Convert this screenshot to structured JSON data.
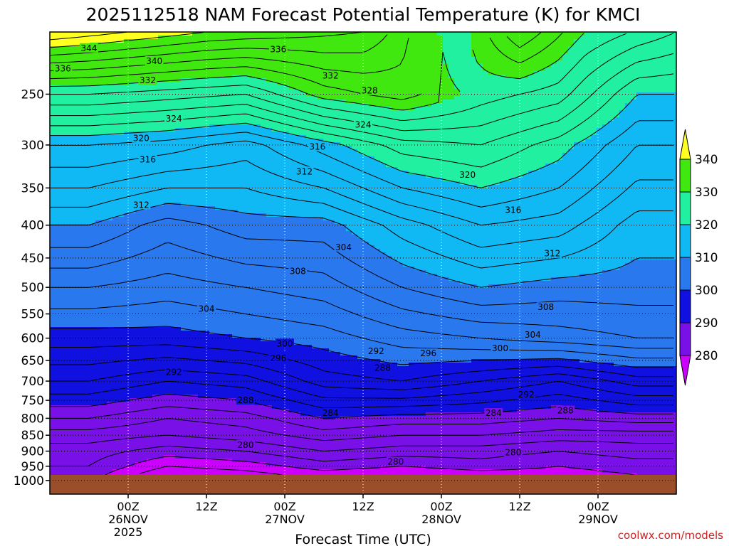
{
  "chart_data": {
    "type": "heatmap",
    "title": "2025112518 NAM Forecast Potential Temperature (K) for KMCI",
    "xlabel": "Forecast Time (UTC)",
    "ylabel": "",
    "y_scale": "log",
    "y_inverted": true,
    "y_ticks": [
      250,
      300,
      350,
      400,
      450,
      500,
      550,
      600,
      650,
      700,
      750,
      800,
      850,
      900,
      950,
      1000
    ],
    "y_range": [
      200,
      1050
    ],
    "x_hours_range": [
      -12,
      84
    ],
    "x_ticks": [
      {
        "hour": 0,
        "lines": [
          "00Z",
          "26NOV",
          "2025"
        ]
      },
      {
        "hour": 12,
        "lines": [
          "12Z"
        ]
      },
      {
        "hour": 24,
        "lines": [
          "00Z",
          "27NOV"
        ]
      },
      {
        "hour": 36,
        "lines": [
          "12Z"
        ]
      },
      {
        "hour": 48,
        "lines": [
          "00Z",
          "28NOV"
        ]
      },
      {
        "hour": 60,
        "lines": [
          "12Z"
        ]
      },
      {
        "hour": 72,
        "lines": [
          "00Z",
          "29NOV"
        ]
      }
    ],
    "grid": true,
    "colorbar": {
      "levels": [
        280,
        290,
        300,
        310,
        320,
        330,
        340
      ],
      "colors": [
        "#cc00ff",
        "#7a10e8",
        "#1010e0",
        "#2a78ee",
        "#10b8f4",
        "#20f0a0",
        "#40e810",
        "#ffff20"
      ]
    },
    "surface_pressure": 980,
    "surface_color": "#9b4e2a",
    "profiles": [
      {
        "hour": -6,
        "theta": [
          [
            250,
            328
          ],
          [
            300,
            318
          ],
          [
            400,
            310
          ],
          [
            500,
            304
          ],
          [
            600,
            299
          ],
          [
            700,
            294
          ],
          [
            800,
            288
          ],
          [
            850,
            285
          ],
          [
            900,
            283
          ],
          [
            950,
            282
          ],
          [
            980,
            281
          ]
        ]
      },
      {
        "hour": 6,
        "theta": [
          [
            250,
            327
          ],
          [
            300,
            317
          ],
          [
            400,
            307
          ],
          [
            500,
            303
          ],
          [
            600,
            299
          ],
          [
            700,
            292
          ],
          [
            800,
            286
          ],
          [
            850,
            284
          ],
          [
            900,
            281
          ],
          [
            950,
            278
          ],
          [
            980,
            276
          ]
        ]
      },
      {
        "hour": 18,
        "theta": [
          [
            250,
            326
          ],
          [
            300,
            315
          ],
          [
            400,
            309
          ],
          [
            500,
            304
          ],
          [
            600,
            300
          ],
          [
            700,
            293
          ],
          [
            800,
            287
          ],
          [
            850,
            285
          ],
          [
            900,
            282
          ],
          [
            950,
            279
          ],
          [
            980,
            277
          ]
        ]
      },
      {
        "hour": 30,
        "theta": [
          [
            250,
            331
          ],
          [
            300,
            319
          ],
          [
            400,
            309
          ],
          [
            500,
            305
          ],
          [
            600,
            301
          ],
          [
            700,
            297
          ],
          [
            800,
            290
          ],
          [
            850,
            287
          ],
          [
            900,
            284
          ],
          [
            950,
            281
          ],
          [
            980,
            279
          ]
        ]
      },
      {
        "hour": 42,
        "theta": [
          [
            250,
            333
          ],
          [
            300,
            323
          ],
          [
            400,
            313
          ],
          [
            500,
            308
          ],
          [
            600,
            303
          ],
          [
            700,
            298
          ],
          [
            800,
            289
          ],
          [
            850,
            286
          ],
          [
            900,
            283
          ],
          [
            950,
            280
          ],
          [
            980,
            278
          ]
        ]
      },
      {
        "hour": 54,
        "theta": [
          [
            250,
            329
          ],
          [
            300,
            324
          ],
          [
            400,
            316
          ],
          [
            500,
            310
          ],
          [
            600,
            304
          ],
          [
            700,
            296
          ],
          [
            800,
            289
          ],
          [
            850,
            286
          ],
          [
            900,
            283
          ],
          [
            950,
            281
          ],
          [
            980,
            279
          ]
        ]
      },
      {
        "hour": 66,
        "theta": [
          [
            250,
            327
          ],
          [
            300,
            321
          ],
          [
            400,
            315
          ],
          [
            500,
            309
          ],
          [
            600,
            305
          ],
          [
            700,
            294
          ],
          [
            800,
            288
          ],
          [
            850,
            285
          ],
          [
            900,
            282
          ],
          [
            950,
            280
          ],
          [
            980,
            279
          ]
        ]
      },
      {
        "hour": 78,
        "theta": [
          [
            250,
            320
          ],
          [
            300,
            316
          ],
          [
            400,
            311
          ],
          [
            500,
            309
          ],
          [
            600,
            306
          ],
          [
            700,
            297
          ],
          [
            800,
            289
          ],
          [
            850,
            285
          ],
          [
            900,
            283
          ],
          [
            950,
            281
          ],
          [
            980,
            280
          ]
        ]
      }
    ],
    "upper_theta": [
      [
        -12,
        344
      ],
      [
        0,
        342
      ],
      [
        12,
        340
      ],
      [
        24,
        339
      ],
      [
        36,
        338
      ],
      [
        42,
        335
      ],
      [
        50,
        328
      ],
      [
        60,
        336
      ],
      [
        70,
        330
      ],
      [
        84,
        326
      ]
    ],
    "contour_labels": [
      {
        "hour": -6,
        "p": 212,
        "text": "344"
      },
      {
        "hour": 4,
        "p": 222,
        "text": "340"
      },
      {
        "hour": -10,
        "p": 228,
        "text": "336"
      },
      {
        "hour": 23,
        "p": 213,
        "text": "336"
      },
      {
        "hour": 3,
        "p": 238,
        "text": "332"
      },
      {
        "hour": 31,
        "p": 234,
        "text": "332"
      },
      {
        "hour": 37,
        "p": 247,
        "text": "328"
      },
      {
        "hour": 7,
        "p": 273,
        "text": "324"
      },
      {
        "hour": 36,
        "p": 279,
        "text": "324"
      },
      {
        "hour": 2,
        "p": 293,
        "text": "320"
      },
      {
        "hour": 52,
        "p": 334,
        "text": "320"
      },
      {
        "hour": 29,
        "p": 302,
        "text": "316"
      },
      {
        "hour": 3,
        "p": 316,
        "text": "316"
      },
      {
        "hour": 27,
        "p": 330,
        "text": "312"
      },
      {
        "hour": 2,
        "p": 372,
        "text": "312"
      },
      {
        "hour": 59,
        "p": 379,
        "text": "316"
      },
      {
        "hour": 65,
        "p": 443,
        "text": "312"
      },
      {
        "hour": 33,
        "p": 433,
        "text": "304"
      },
      {
        "hour": 26,
        "p": 472,
        "text": "308"
      },
      {
        "hour": 12,
        "p": 540,
        "text": "304"
      },
      {
        "hour": 64,
        "p": 537,
        "text": "308"
      },
      {
        "hour": 62,
        "p": 593,
        "text": "304"
      },
      {
        "hour": 24,
        "p": 612,
        "text": "300"
      },
      {
        "hour": 57,
        "p": 622,
        "text": "300"
      },
      {
        "hour": 23,
        "p": 645,
        "text": "296"
      },
      {
        "hour": 46,
        "p": 634,
        "text": "296"
      },
      {
        "hour": 38,
        "p": 629,
        "text": "292"
      },
      {
        "hour": 7,
        "p": 678,
        "text": "292"
      },
      {
        "hour": 39,
        "p": 668,
        "text": "288"
      },
      {
        "hour": 61,
        "p": 735,
        "text": "292"
      },
      {
        "hour": 18,
        "p": 750,
        "text": "288"
      },
      {
        "hour": 67,
        "p": 778,
        "text": "288"
      },
      {
        "hour": 31,
        "p": 785,
        "text": "284"
      },
      {
        "hour": 56,
        "p": 785,
        "text": "284"
      },
      {
        "hour": 18,
        "p": 880,
        "text": "280"
      },
      {
        "hour": 41,
        "p": 935,
        "text": "280"
      },
      {
        "hour": 59,
        "p": 905,
        "text": "280"
      }
    ]
  },
  "credit": "coolwx.com/models"
}
